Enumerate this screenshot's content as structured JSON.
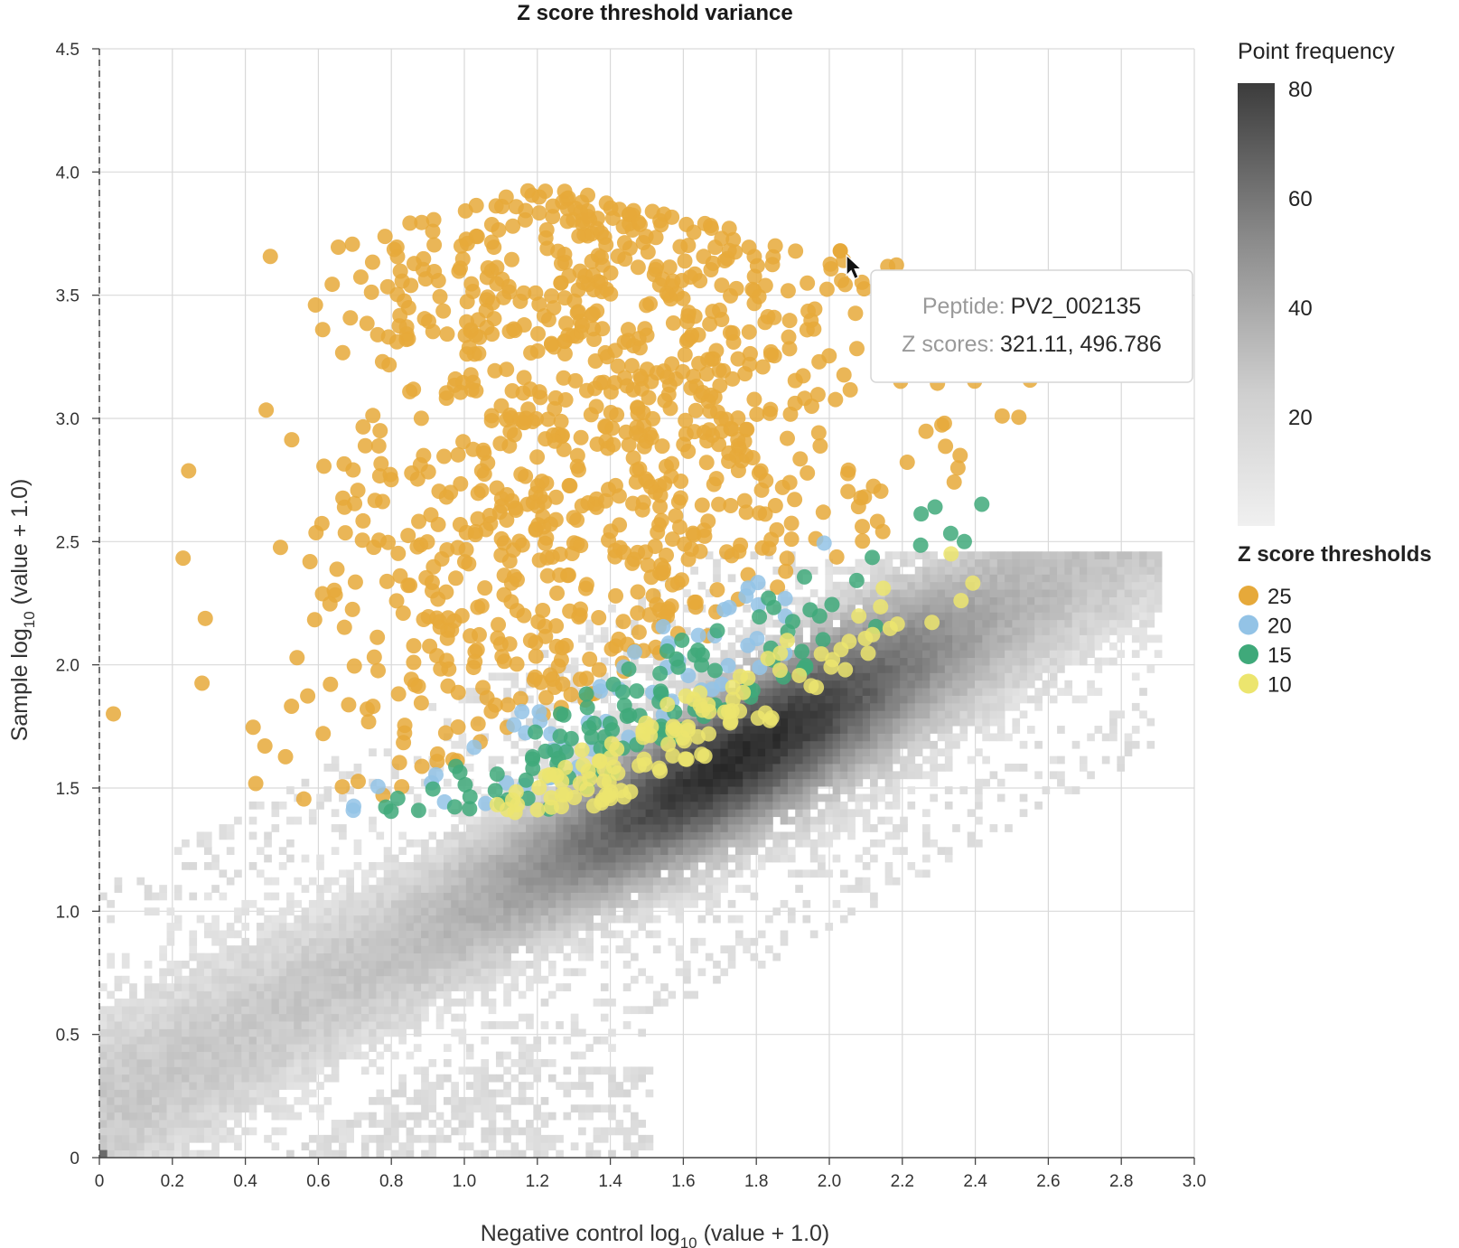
{
  "chart_data": {
    "type": "scatter",
    "title": "Z score threshold variance",
    "xlabel": {
      "prefix": "Negative control log",
      "sub": "10",
      "suffix": " (value + 1.0)"
    },
    "ylabel": {
      "prefix": "Sample log",
      "sub": "10",
      "suffix": " (value + 1.0)"
    },
    "xlim": [
      0,
      3.0
    ],
    "ylim": [
      0,
      4.5
    ],
    "x_ticks": [
      "0",
      "0.2",
      "0.4",
      "0.6",
      "0.8",
      "1.0",
      "1.2",
      "1.4",
      "1.6",
      "1.8",
      "2.0",
      "2.2",
      "2.4",
      "2.6",
      "2.8",
      "3.0"
    ],
    "y_ticks": [
      "0",
      "0.5",
      "1.0",
      "1.5",
      "2.0",
      "2.5",
      "3.0",
      "3.5",
      "4.0",
      "4.5"
    ],
    "grid": true,
    "density_legend": {
      "title": "Point frequency",
      "range": [
        0,
        80
      ],
      "ticks": [
        "80",
        "60",
        "40",
        "20"
      ],
      "colors": [
        "#ececec",
        "#3c3c3c"
      ]
    },
    "density": {
      "description_colorscale": "grayscale heatmap along diagonal",
      "ridge": {
        "slope": 0.82,
        "intercept": -0.07,
        "spread": 0.16
      },
      "x_extent": [
        0,
        2.9
      ],
      "bin_size": 0.0205
    },
    "threshold_legend": {
      "title": "Z score thresholds",
      "entries": [
        {
          "label": "25",
          "color": "#e6a93a"
        },
        {
          "label": "20",
          "color": "#93c3e6"
        },
        {
          "label": "15",
          "color": "#3fa97a"
        },
        {
          "label": "10",
          "color": "#ece56e"
        }
      ]
    },
    "series": [
      {
        "name": "25",
        "color": "#e6a93a",
        "n": 980,
        "region": "upper",
        "y_min_offset": 0.55,
        "y_max": 3.95
      },
      {
        "name": "20",
        "color": "#93c3e6",
        "n": 60,
        "region": "band",
        "y_min_offset": 0.45,
        "y_max": 2.75
      },
      {
        "name": "15",
        "color": "#3fa97a",
        "n": 110,
        "region": "band",
        "y_min_offset": 0.35,
        "y_max": 2.85
      },
      {
        "name": "10",
        "color": "#ece56e",
        "n": 120,
        "region": "lower",
        "y_min_offset": 0.2,
        "y_max": 2.8
      }
    ],
    "highlighted_point": {
      "x": 2.03,
      "y": 3.68
    }
  },
  "tooltip": {
    "peptide_key": "Peptide:",
    "peptide_value": "PV2_002135",
    "zscore_key": "Z scores:",
    "zscore_value": "321.11, 496.786"
  }
}
